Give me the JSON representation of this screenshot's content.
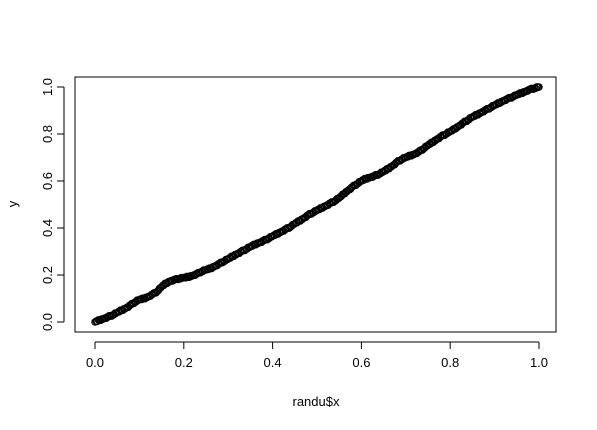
{
  "chart_data": {
    "type": "scatter",
    "title": "",
    "xlabel": "randu$x",
    "ylabel": "y",
    "xlim": [
      0,
      1
    ],
    "ylim": [
      0,
      1
    ],
    "xticks": [
      0.0,
      0.2,
      0.4,
      0.6,
      0.8,
      1.0
    ],
    "yticks": [
      0.0,
      0.2,
      0.4,
      0.6,
      0.8,
      1.0
    ],
    "xtick_labels": [
      "0.0",
      "0.2",
      "0.4",
      "0.6",
      "0.8",
      "1.0"
    ],
    "ytick_labels": [
      "0.0",
      "0.2",
      "0.4",
      "0.6",
      "0.8",
      "1.0"
    ],
    "grid": false,
    "marker": "open-circle",
    "series": [
      {
        "x": [
          0.0,
          0.01,
          0.02,
          0.03,
          0.04,
          0.05,
          0.06,
          0.07,
          0.08,
          0.09,
          0.1,
          0.11,
          0.12,
          0.13,
          0.14,
          0.15,
          0.16,
          0.17,
          0.18,
          0.19,
          0.2,
          0.21,
          0.22,
          0.23,
          0.24,
          0.25,
          0.26,
          0.27,
          0.28,
          0.29,
          0.3,
          0.31,
          0.32,
          0.33,
          0.34,
          0.35,
          0.36,
          0.37,
          0.38,
          0.39,
          0.4,
          0.41,
          0.42,
          0.43,
          0.44,
          0.45,
          0.46,
          0.47,
          0.48,
          0.49,
          0.5,
          0.51,
          0.52,
          0.53,
          0.54,
          0.55,
          0.56,
          0.57,
          0.58,
          0.59,
          0.6,
          0.61,
          0.62,
          0.63,
          0.64,
          0.65,
          0.66,
          0.67,
          0.68,
          0.69,
          0.7,
          0.71,
          0.72,
          0.73,
          0.74,
          0.75,
          0.76,
          0.77,
          0.78,
          0.79,
          0.8,
          0.81,
          0.82,
          0.83,
          0.84,
          0.85,
          0.86,
          0.87,
          0.88,
          0.89,
          0.9,
          0.91,
          0.92,
          0.93,
          0.94,
          0.95,
          0.96,
          0.97,
          0.98,
          0.99,
          1.0
        ],
        "y": [
          0.0,
          0.008,
          0.015,
          0.022,
          0.03,
          0.04,
          0.05,
          0.06,
          0.072,
          0.085,
          0.095,
          0.1,
          0.108,
          0.118,
          0.13,
          0.15,
          0.165,
          0.175,
          0.18,
          0.185,
          0.188,
          0.192,
          0.198,
          0.205,
          0.215,
          0.222,
          0.228,
          0.238,
          0.248,
          0.258,
          0.268,
          0.28,
          0.29,
          0.3,
          0.31,
          0.32,
          0.33,
          0.338,
          0.346,
          0.355,
          0.365,
          0.375,
          0.385,
          0.395,
          0.405,
          0.418,
          0.43,
          0.442,
          0.455,
          0.465,
          0.475,
          0.485,
          0.495,
          0.505,
          0.515,
          0.528,
          0.545,
          0.56,
          0.575,
          0.588,
          0.6,
          0.61,
          0.616,
          0.622,
          0.63,
          0.64,
          0.652,
          0.665,
          0.68,
          0.692,
          0.7,
          0.708,
          0.715,
          0.725,
          0.738,
          0.752,
          0.765,
          0.778,
          0.79,
          0.8,
          0.81,
          0.822,
          0.835,
          0.848,
          0.86,
          0.872,
          0.882,
          0.892,
          0.902,
          0.912,
          0.922,
          0.932,
          0.942,
          0.95,
          0.958,
          0.966,
          0.974,
          0.982,
          0.99,
          0.995,
          1.0
        ]
      }
    ]
  }
}
